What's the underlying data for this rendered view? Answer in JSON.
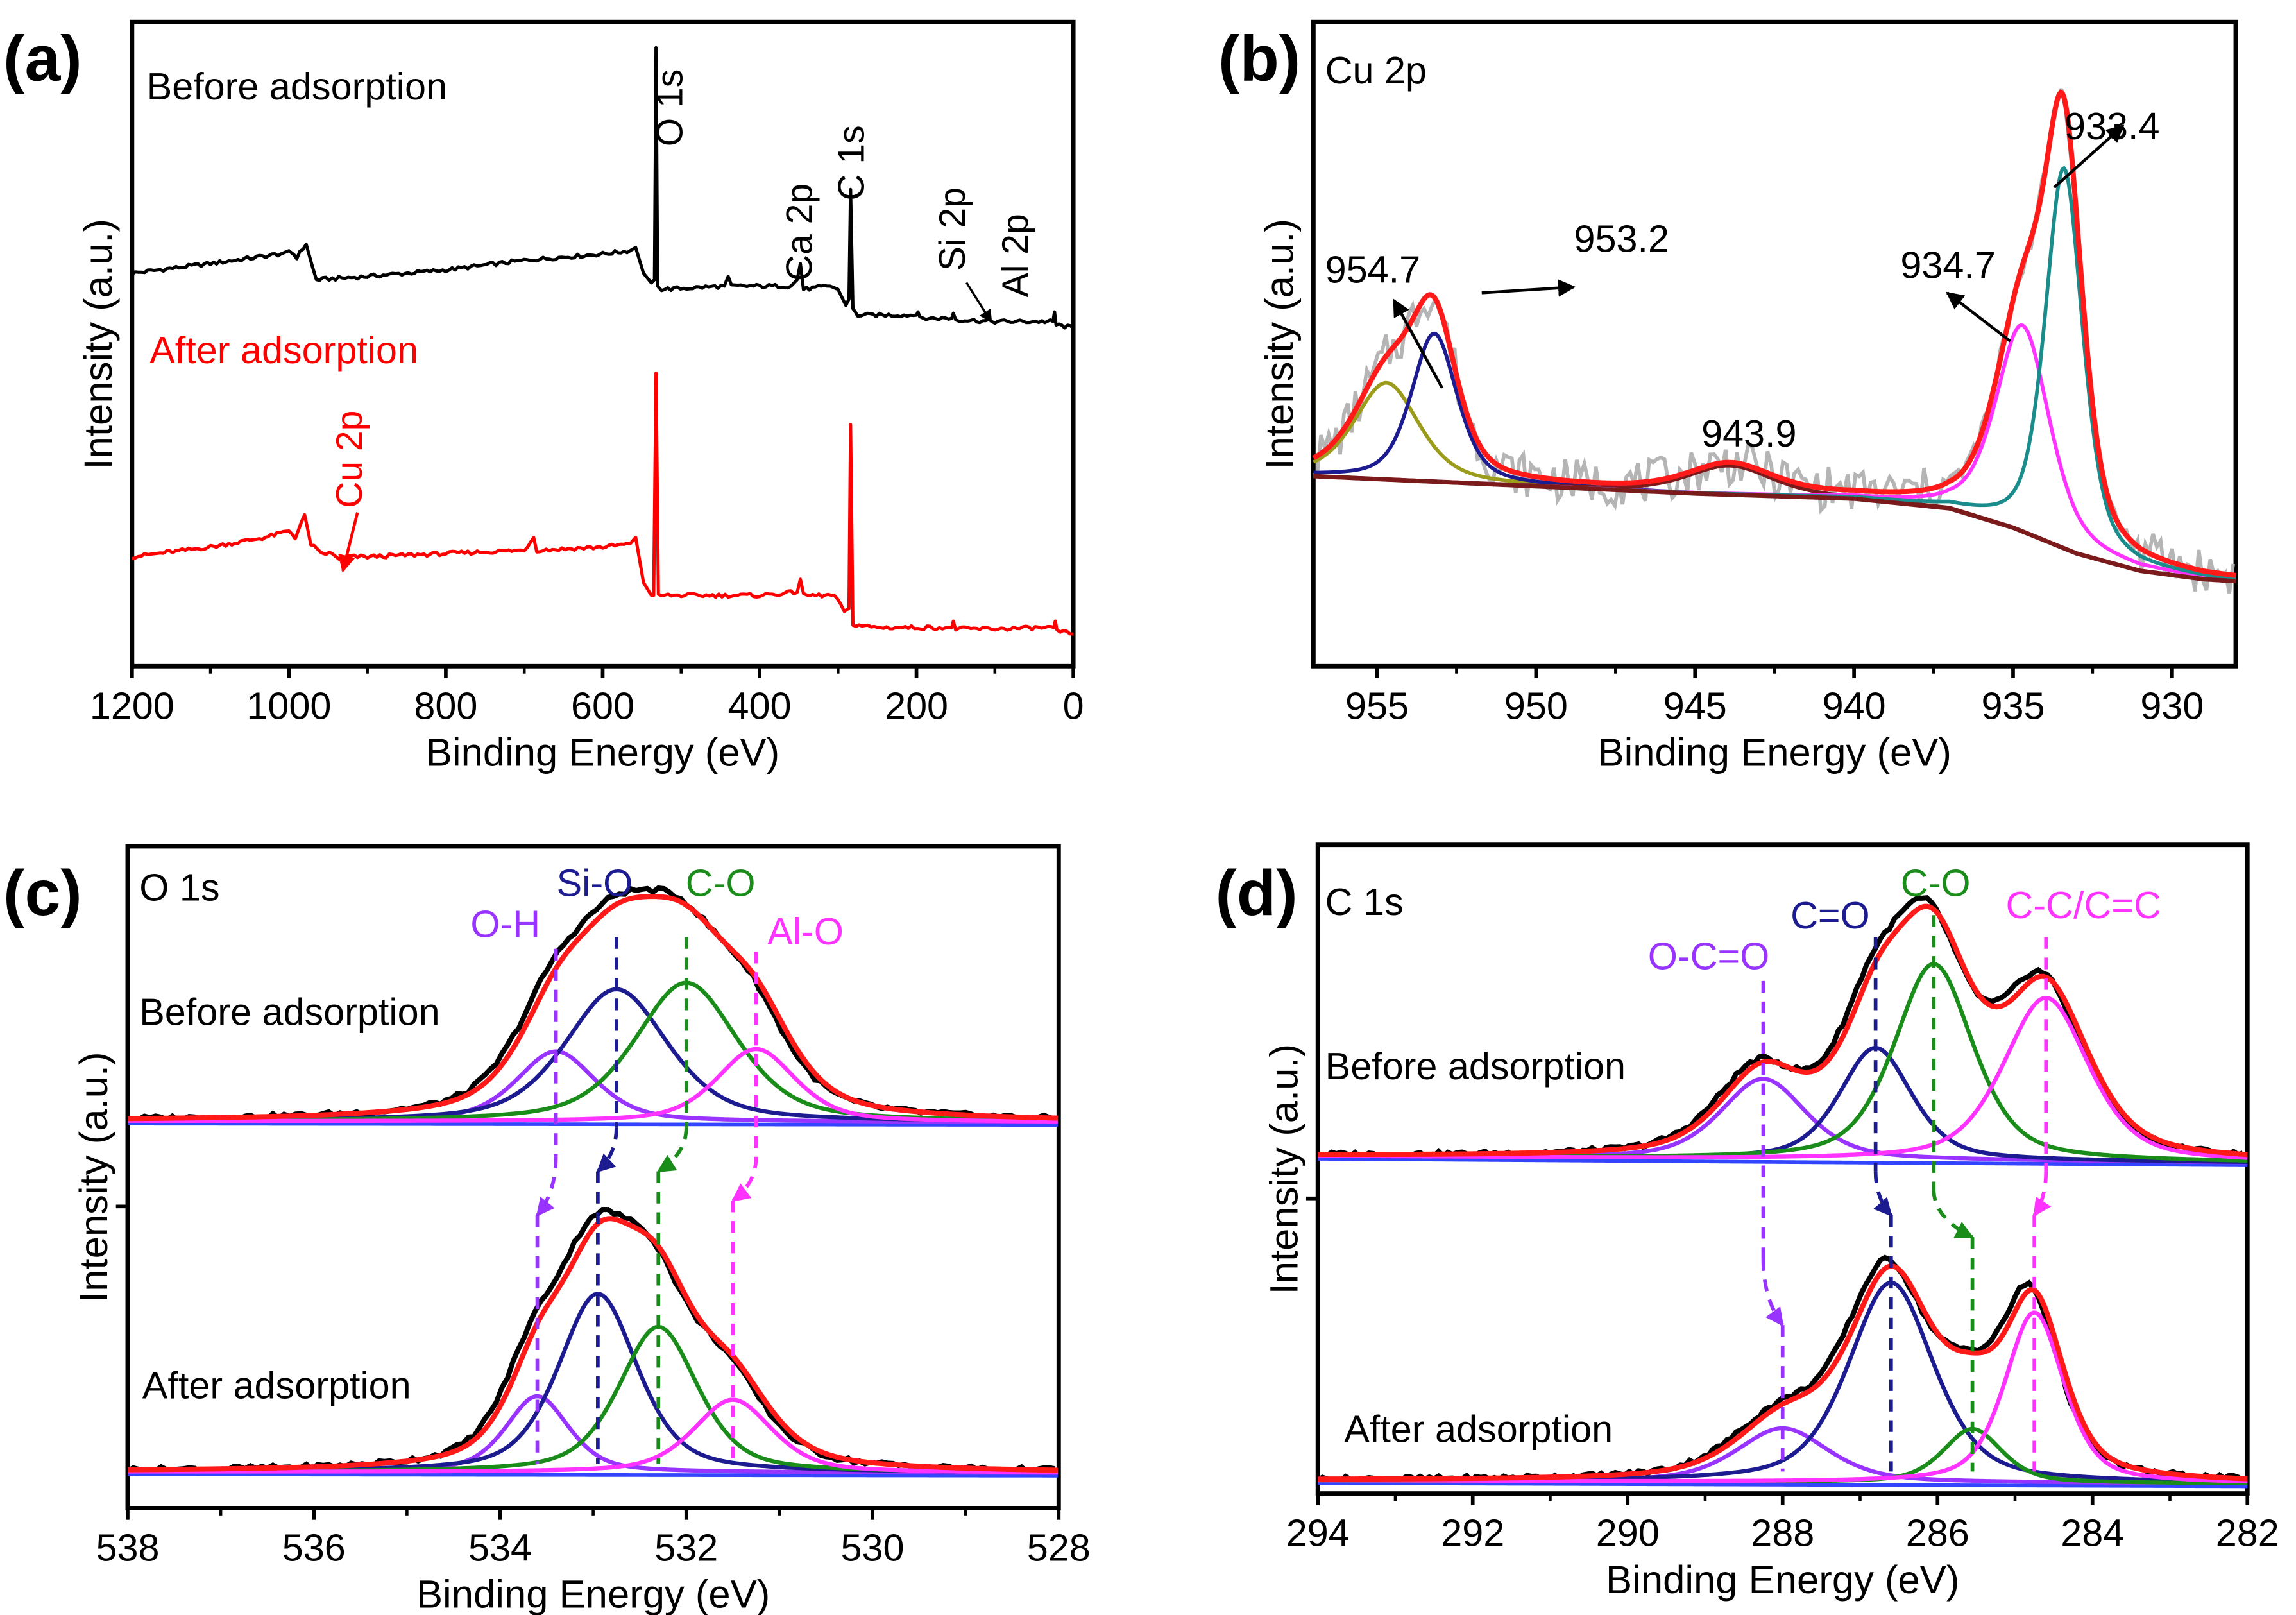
{
  "chart_data": [
    {
      "id": "a",
      "type": "line",
      "panel_label": "(a)",
      "xlabel": "Binding Energy (eV)",
      "ylabel": "Intensity (a.u.)",
      "xlim": [
        1200,
        0
      ],
      "ylim": [
        0,
        1
      ],
      "xticks": [
        1200,
        1000,
        800,
        600,
        400,
        200,
        0
      ],
      "xtick_labels": [
        "1200",
        "1000",
        "800",
        "600",
        "400",
        "200",
        "0"
      ],
      "grid": false,
      "series": [
        {
          "name": "Before adsorption",
          "color": "#000000",
          "points": [
            [
              1200,
              0.61
            ],
            [
              1100,
              0.625
            ],
            [
              1010,
              0.64
            ],
            [
              1000,
              0.645
            ],
            [
              990,
              0.635
            ],
            [
              978,
              0.655
            ],
            [
              970,
              0.62
            ],
            [
              965,
              0.6
            ],
            [
              900,
              0.605
            ],
            [
              800,
              0.615
            ],
            [
              700,
              0.63
            ],
            [
              600,
              0.64
            ],
            [
              565,
              0.645
            ],
            [
              558,
              0.65
            ],
            [
              548,
              0.61
            ],
            [
              538,
              0.595
            ],
            [
              534,
              0.6
            ],
            [
              532,
              0.96
            ],
            [
              530,
              0.59
            ],
            [
              525,
              0.585
            ],
            [
              445,
              0.59
            ],
            [
              440,
              0.605
            ],
            [
              436,
              0.59
            ],
            [
              360,
              0.59
            ],
            [
              352,
              0.6
            ],
            [
              348,
              0.625
            ],
            [
              344,
              0.585
            ],
            [
              310,
              0.59
            ],
            [
              300,
              0.585
            ],
            [
              290,
              0.56
            ],
            [
              286,
              0.57
            ],
            [
              284,
              0.74
            ],
            [
              281,
              0.555
            ],
            [
              275,
              0.545
            ],
            [
              200,
              0.545
            ],
            [
              198,
              0.55
            ],
            [
              196,
              0.54
            ],
            [
              155,
              0.54
            ],
            [
              153,
              0.548
            ],
            [
              150,
              0.538
            ],
            [
              100,
              0.535
            ],
            [
              40,
              0.535
            ],
            [
              26,
              0.535
            ],
            [
              24,
              0.55
            ],
            [
              22,
              0.53
            ],
            [
              0,
              0.525
            ]
          ]
        },
        {
          "name": "After adsorption",
          "color": "#ff0000",
          "points": [
            [
              1200,
              0.17
            ],
            [
              1100,
              0.185
            ],
            [
              1030,
              0.2
            ],
            [
              1000,
              0.21
            ],
            [
              992,
              0.2
            ],
            [
              980,
              0.235
            ],
            [
              972,
              0.19
            ],
            [
              960,
              0.175
            ],
            [
              945,
              0.175
            ],
            [
              935,
              0.165
            ],
            [
              925,
              0.17
            ],
            [
              900,
              0.17
            ],
            [
              800,
              0.175
            ],
            [
              700,
              0.18
            ],
            [
              688,
              0.2
            ],
            [
              684,
              0.18
            ],
            [
              600,
              0.185
            ],
            [
              565,
              0.19
            ],
            [
              558,
              0.2
            ],
            [
              548,
              0.13
            ],
            [
              538,
              0.11
            ],
            [
              535,
              0.11
            ],
            [
              532,
              0.455
            ],
            [
              529,
              0.11
            ],
            [
              500,
              0.11
            ],
            [
              400,
              0.11
            ],
            [
              352,
              0.115
            ],
            [
              348,
              0.135
            ],
            [
              344,
              0.11
            ],
            [
              305,
              0.11
            ],
            [
              292,
              0.085
            ],
            [
              286,
              0.09
            ],
            [
              284,
              0.375
            ],
            [
              281,
              0.065
            ],
            [
              250,
              0.06
            ],
            [
              155,
              0.06
            ],
            [
              153,
              0.07
            ],
            [
              150,
              0.058
            ],
            [
              100,
              0.058
            ],
            [
              25,
              0.06
            ],
            [
              23,
              0.07
            ],
            [
              21,
              0.055
            ],
            [
              0,
              0.05
            ]
          ]
        }
      ],
      "annotations": {
        "before_label": "Before adsorption",
        "after_label": "After adsorption",
        "peaks": [
          {
            "text": "O 1s",
            "x": 532,
            "color": "#000000"
          },
          {
            "text": "Ca 2p",
            "x": 350,
            "color": "#000000"
          },
          {
            "text": "C 1s",
            "x": 284,
            "color": "#000000"
          },
          {
            "text": "Si 2p",
            "x": 155,
            "color": "#000000"
          },
          {
            "text": "Al 2p",
            "x": 75,
            "color": "#000000"
          },
          {
            "text": "Cu 2p",
            "x": 933,
            "color": "#ff0000"
          }
        ]
      }
    },
    {
      "id": "b",
      "type": "line",
      "panel_label": "(b)",
      "title": "Cu 2p",
      "xlabel": "Binding Energy (eV)",
      "ylabel": "Intensity (a.u.)",
      "xlim": [
        957,
        928
      ],
      "ylim": [
        0,
        1
      ],
      "xticks": [
        955,
        950,
        945,
        940,
        935,
        930
      ],
      "xtick_labels": [
        "955",
        "950",
        "945",
        "940",
        "935",
        "930"
      ],
      "grid": false,
      "background": {
        "color": "#7a1a1a",
        "points": [
          [
            957,
            0.295
          ],
          [
            945,
            0.268
          ],
          [
            940,
            0.26
          ],
          [
            937,
            0.245
          ],
          [
            935,
            0.215
          ],
          [
            933,
            0.175
          ],
          [
            931,
            0.148
          ],
          [
            929,
            0.135
          ],
          [
            928,
            0.132
          ]
        ]
      },
      "raw_color": "#b5b5b5",
      "envelope_color": "#ff1a1a",
      "components": [
        {
          "label": "954.7",
          "center": 954.7,
          "height": 0.15,
          "fwhm": 2.4,
          "color": "#9c9c1c"
        },
        {
          "label": "953.2",
          "center": 953.2,
          "height": 0.23,
          "fwhm": 1.7,
          "color": "#1c1c90"
        },
        {
          "label": "943.9",
          "center": 943.9,
          "height": 0.045,
          "fwhm": 3.2,
          "color": "#7a1a1a"
        },
        {
          "label": "934.7",
          "center": 934.7,
          "height": 0.32,
          "fwhm": 2.0,
          "color": "#ff33ff"
        },
        {
          "label": "933.4",
          "center": 933.4,
          "height": 0.59,
          "fwhm": 1.4,
          "color": "#1a8c8c"
        }
      ]
    },
    {
      "id": "c",
      "type": "line",
      "panel_label": "(c)",
      "title": "O 1s",
      "xlabel": "Binding Energy (eV)",
      "ylabel": "Intensity (a.u.)",
      "xlim": [
        538,
        528
      ],
      "ylim": [
        0,
        1
      ],
      "xticks": [
        538,
        536,
        534,
        532,
        530,
        528
      ],
      "xtick_labels": [
        "538",
        "536",
        "534",
        "532",
        "530",
        "528"
      ],
      "grid": false,
      "raw_color": "#000000",
      "envelope_color": "#ff1a1a",
      "baseline_color": "#3344ff",
      "stacks": [
        {
          "label": "Before adsorption",
          "baseline": [
            0.585,
            0.583
          ],
          "components": [
            {
              "name": "O-H",
              "center": 533.4,
              "height": 0.106,
              "fwhm": 1.0,
              "color": "#9933ff"
            },
            {
              "name": "Si-O",
              "center": 532.75,
              "height": 0.2,
              "fwhm": 1.3,
              "color": "#1c1c90"
            },
            {
              "name": "C-O",
              "center": 532.0,
              "height": 0.21,
              "fwhm": 1.3,
              "color": "#1a8c1a"
            },
            {
              "name": "Al-O",
              "center": 531.25,
              "height": 0.11,
              "fwhm": 1.0,
              "color": "#ff33ff"
            }
          ]
        },
        {
          "label": "After adsorption",
          "baseline": [
            0.055,
            0.053
          ],
          "components": [
            {
              "name": "O-H",
              "center": 533.6,
              "height": 0.115,
              "fwhm": 0.8,
              "color": "#9933ff"
            },
            {
              "name": "Si-O",
              "center": 532.95,
              "height": 0.27,
              "fwhm": 1.0,
              "color": "#1c1c90"
            },
            {
              "name": "C-O",
              "center": 532.3,
              "height": 0.22,
              "fwhm": 1.0,
              "color": "#1a8c1a"
            },
            {
              "name": "Al-O",
              "center": 531.5,
              "height": 0.11,
              "fwhm": 1.0,
              "color": "#ff33ff"
            }
          ]
        }
      ]
    },
    {
      "id": "d",
      "type": "line",
      "panel_label": "(d)",
      "title": "C 1s",
      "xlabel": "Binding Energy (eV)",
      "ylabel": "Intensity (a.u.)",
      "xlim": [
        294,
        282
      ],
      "ylim": [
        0,
        1
      ],
      "xticks": [
        294,
        292,
        290,
        288,
        286,
        284,
        282
      ],
      "xtick_labels": [
        "294",
        "292",
        "290",
        "288",
        "286",
        "284",
        "282"
      ],
      "grid": false,
      "raw_color": "#000000",
      "envelope_color": "#ff1a1a",
      "baseline_color": "#3344ff",
      "stacks": [
        {
          "label": "Before adsorption",
          "baseline": [
            0.52,
            0.51
          ],
          "components": [
            {
              "name": "O-C=O",
              "center": 288.25,
              "height": 0.124,
              "fwhm": 1.3,
              "color": "#9933ff"
            },
            {
              "name": "C=O",
              "center": 286.8,
              "height": 0.173,
              "fwhm": 1.1,
              "color": "#1c1c90"
            },
            {
              "name": "C-O",
              "center": 286.05,
              "height": 0.303,
              "fwhm": 1.2,
              "color": "#1a8c1a"
            },
            {
              "name": "C-C/C=C",
              "center": 284.6,
              "height": 0.252,
              "fwhm": 1.3,
              "color": "#ff33ff"
            }
          ]
        },
        {
          "label": "After adsorption",
          "baseline": [
            0.02,
            0.015
          ],
          "components": [
            {
              "name": "O-C=O",
              "center": 288.0,
              "height": 0.083,
              "fwhm": 1.4,
              "color": "#9933ff"
            },
            {
              "name": "C=O",
              "center": 286.6,
              "height": 0.308,
              "fwhm": 1.3,
              "color": "#1c1c90"
            },
            {
              "name": "C-O",
              "center": 285.55,
              "height": 0.083,
              "fwhm": 0.9,
              "color": "#1a8c1a"
            },
            {
              "name": "C-C/C=C",
              "center": 284.75,
              "height": 0.263,
              "fwhm": 0.9,
              "color": "#ff33ff"
            }
          ]
        }
      ]
    }
  ]
}
